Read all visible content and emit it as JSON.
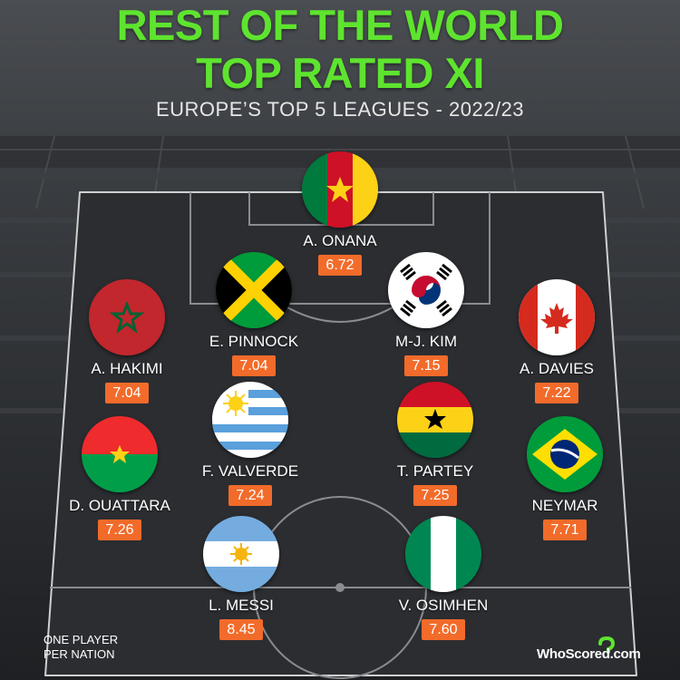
{
  "header": {
    "title_line1": "REST OF THE WORLD",
    "title_line2": "TOP RATED XI",
    "subtitle": "EUROPE’S TOP 5 LEAGUES - 2022/23"
  },
  "players": [
    {
      "name": "A. ONANA",
      "rating": "6.72",
      "flag": "cameroon-flag-icon"
    },
    {
      "name": "E. PINNOCK",
      "rating": "7.04",
      "flag": "jamaica-flag-icon"
    },
    {
      "name": "M-J. KIM",
      "rating": "7.15",
      "flag": "south-korea-flag-icon"
    },
    {
      "name": "A. HAKIMI",
      "rating": "7.04",
      "flag": "morocco-flag-icon"
    },
    {
      "name": "A. DAVIES",
      "rating": "7.22",
      "flag": "canada-flag-icon"
    },
    {
      "name": "F. VALVERDE",
      "rating": "7.24",
      "flag": "uruguay-flag-icon"
    },
    {
      "name": "T. PARTEY",
      "rating": "7.25",
      "flag": "ghana-flag-icon"
    },
    {
      "name": "D. OUATTARA",
      "rating": "7.26",
      "flag": "burkina-faso-flag-icon"
    },
    {
      "name": "NEYMAR",
      "rating": "7.71",
      "flag": "brazil-flag-icon"
    },
    {
      "name": "L. MESSI",
      "rating": "8.45",
      "flag": "argentina-flag-icon"
    },
    {
      "name": "V. OSIMHEN",
      "rating": "7.60",
      "flag": "nigeria-flag-icon"
    }
  ],
  "footer": {
    "note_line1": "ONE PLAYER",
    "note_line2": "PER NATION",
    "logo": "WhoScored.com"
  },
  "colors": {
    "title_green": "#5ee42f",
    "rating_orange": "#f26b2a",
    "pitch_dark": "#2b2d31"
  }
}
